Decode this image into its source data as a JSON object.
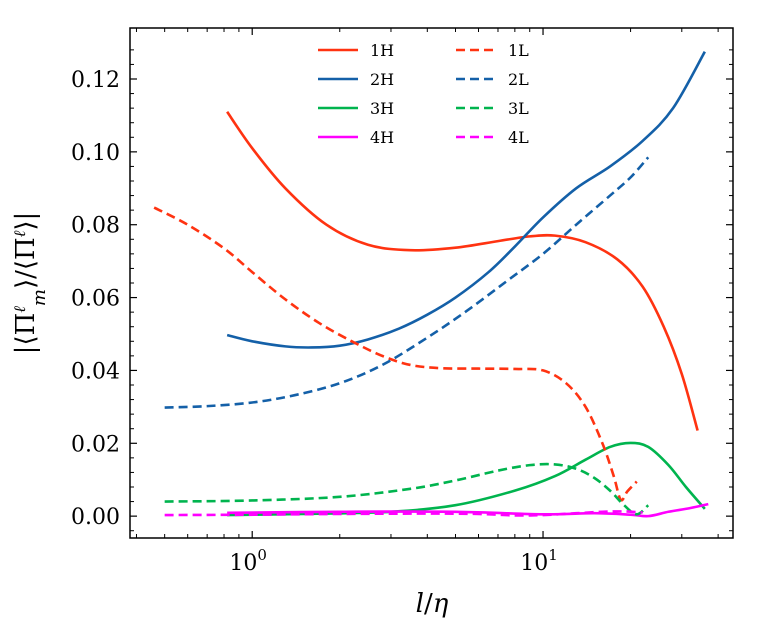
{
  "chart_data": {
    "type": "line",
    "title": "",
    "xlabel": "l/η",
    "ylabel": "|⟨Π^ℓ_m⟩/⟨Π^ℓ⟩|",
    "xscale": "log",
    "xlim": [
      0.38,
      45
    ],
    "ylim": [
      -0.006,
      0.134
    ],
    "x_ticks": [
      {
        "value": 1,
        "base": "10",
        "exp": "0"
      },
      {
        "value": 10,
        "base": "10",
        "exp": "1"
      }
    ],
    "y_ticks": [
      {
        "value": 0.0,
        "label": "0.00"
      },
      {
        "value": 0.02,
        "label": "0.02"
      },
      {
        "value": 0.04,
        "label": "0.04"
      },
      {
        "value": 0.06,
        "label": "0.06"
      },
      {
        "value": 0.08,
        "label": "0.08"
      },
      {
        "value": 0.1,
        "label": "0.10"
      },
      {
        "value": 0.12,
        "label": "0.12"
      }
    ],
    "legend_position": "top-center",
    "series": [
      {
        "name": "1H",
        "color": "#ff3311",
        "dash": "solid",
        "x": [
          0.82,
          1.0,
          1.3,
          1.8,
          2.5,
          3.5,
          5,
          7,
          9,
          11,
          14,
          18,
          22,
          26,
          30,
          34
        ],
        "y": [
          0.111,
          0.101,
          0.09,
          0.08,
          0.0745,
          0.073,
          0.0737,
          0.0755,
          0.0768,
          0.077,
          0.0752,
          0.0705,
          0.063,
          0.052,
          0.039,
          0.0235
        ]
      },
      {
        "name": "2H",
        "color": "#1460a8",
        "dash": "solid",
        "x": [
          0.82,
          1.0,
          1.3,
          1.6,
          2.0,
          2.5,
          3.2,
          4,
          5,
          6.5,
          8,
          10,
          13,
          17,
          22,
          28,
          36
        ],
        "y": [
          0.0497,
          0.048,
          0.0466,
          0.0463,
          0.0468,
          0.0485,
          0.0515,
          0.0553,
          0.06,
          0.067,
          0.074,
          0.082,
          0.09,
          0.096,
          0.103,
          0.112,
          0.1275
        ]
      },
      {
        "name": "3H",
        "color": "#00b44e",
        "dash": "solid",
        "x": [
          0.82,
          1.5,
          3,
          5,
          8,
          11,
          14,
          17,
          20,
          23,
          27,
          31,
          36
        ],
        "y": [
          0.0003,
          0.0006,
          0.0012,
          0.003,
          0.007,
          0.011,
          0.0155,
          0.019,
          0.0201,
          0.019,
          0.014,
          0.008,
          0.002
        ]
      },
      {
        "name": "4H",
        "color": "#ff00ff",
        "dash": "solid",
        "x": [
          0.82,
          2,
          5,
          10,
          15,
          20,
          23,
          27,
          32,
          37
        ],
        "y": [
          0.0009,
          0.0012,
          0.0012,
          0.0005,
          0.0008,
          0.0004,
          0.0,
          0.0012,
          0.0022,
          0.0033
        ]
      },
      {
        "name": "1L",
        "color": "#ff3311",
        "dash": "dashed",
        "x": [
          0.46,
          0.6,
          0.8,
          1.0,
          1.3,
          1.7,
          2.2,
          2.8,
          3.5,
          4.5,
          6,
          8,
          10,
          12,
          14,
          16,
          17.5,
          18.5,
          19.5,
          21
        ],
        "y": [
          0.0847,
          0.08,
          0.0735,
          0.067,
          0.0595,
          0.053,
          0.048,
          0.044,
          0.0415,
          0.0406,
          0.0405,
          0.0404,
          0.04,
          0.0365,
          0.03,
          0.02,
          0.011,
          0.0045,
          0.0068,
          0.0095
        ]
      },
      {
        "name": "2L",
        "color": "#1460a8",
        "dash": "dashed",
        "x": [
          0.5,
          0.7,
          1.0,
          1.4,
          2.0,
          2.8,
          4,
          5.5,
          7.5,
          10,
          13,
          17,
          20,
          23
        ],
        "y": [
          0.0298,
          0.0302,
          0.0312,
          0.0332,
          0.0365,
          0.0415,
          0.049,
          0.0565,
          0.0645,
          0.072,
          0.08,
          0.088,
          0.093,
          0.0985
        ]
      },
      {
        "name": "3L",
        "color": "#00b44e",
        "dash": "dashed",
        "x": [
          0.5,
          1.0,
          2.0,
          3.5,
          5,
          7,
          9,
          11,
          13,
          15,
          17,
          19,
          21,
          23
        ],
        "y": [
          0.004,
          0.0043,
          0.0053,
          0.0075,
          0.0098,
          0.0125,
          0.014,
          0.0142,
          0.013,
          0.0105,
          0.007,
          0.003,
          0.0005,
          0.003
        ]
      },
      {
        "name": "4L",
        "color": "#ff00ff",
        "dash": "dashed",
        "x": [
          0.5,
          1.0,
          2.0,
          4,
          6,
          8,
          10,
          13,
          16,
          19,
          22
        ],
        "y": [
          0.0003,
          0.0004,
          0.0006,
          0.0007,
          0.0006,
          0.0002,
          0.0003,
          0.0008,
          0.0012,
          0.0013,
          0.001
        ]
      }
    ]
  }
}
